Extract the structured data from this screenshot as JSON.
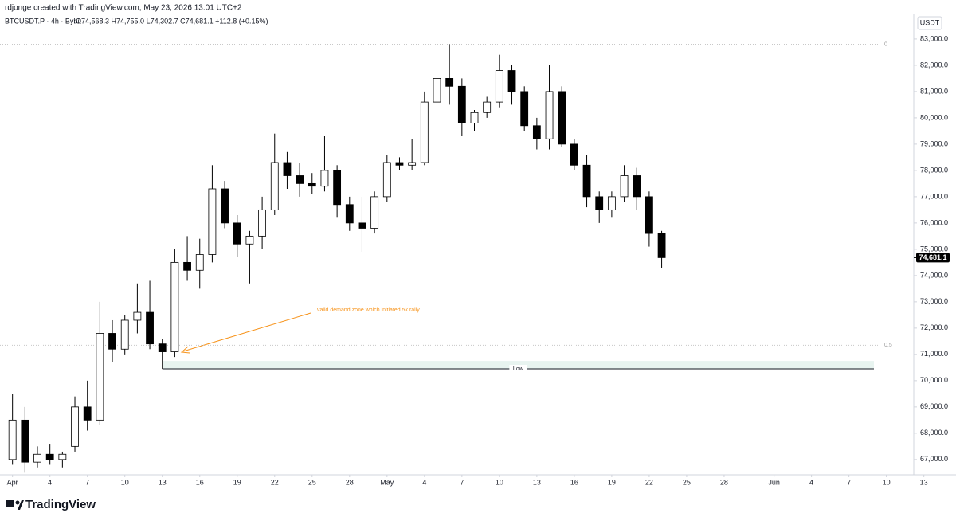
{
  "header": {
    "credit": "rdjonge created with TradingView.com, May 23, 2026 13:01 UTC+2",
    "symbol": "BTCUSDT.P · 4h · Bybit",
    "ohlc": "O74,568.3 H74,755.0 L74,302.7 C74,681.1 +112.8 (+0.15%)"
  },
  "footer": {
    "brand": "TradingView"
  },
  "chart_data": {
    "type": "candlestick",
    "x": [
      "2026-04-01",
      "2026-04-02",
      "2026-04-03",
      "2026-04-04",
      "2026-04-05",
      "2026-04-06",
      "2026-04-07",
      "2026-04-08",
      "2026-04-09",
      "2026-04-10",
      "2026-04-11",
      "2026-04-12",
      "2026-04-13",
      "2026-04-14",
      "2026-04-15",
      "2026-04-16",
      "2026-04-17",
      "2026-04-18",
      "2026-04-19",
      "2026-04-20",
      "2026-04-21",
      "2026-04-22",
      "2026-04-23",
      "2026-04-24",
      "2026-04-25",
      "2026-04-26",
      "2026-04-27",
      "2026-04-28",
      "2026-04-29",
      "2026-04-30",
      "2026-05-01",
      "2026-05-02",
      "2026-05-03",
      "2026-05-04",
      "2026-05-05",
      "2026-05-06",
      "2026-05-07",
      "2026-05-08",
      "2026-05-09",
      "2026-05-10",
      "2026-05-11",
      "2026-05-12",
      "2026-05-13",
      "2026-05-14",
      "2026-05-15",
      "2026-05-16",
      "2026-05-17",
      "2026-05-18",
      "2026-05-19",
      "2026-05-20",
      "2026-05-21",
      "2026-05-22",
      "2026-05-23"
    ],
    "open": [
      67000,
      68500,
      66900,
      67200,
      67000,
      67500,
      69000,
      68500,
      71800,
      71200,
      72300,
      72600,
      71400,
      71100,
      74500,
      74200,
      74800,
      77300,
      76000,
      75200,
      75500,
      76500,
      78300,
      77800,
      77500,
      77400,
      78000,
      76700,
      76000,
      75800,
      77000,
      78300,
      78200,
      78300,
      80600,
      81500,
      81200,
      79800,
      80200,
      80600,
      81800,
      81000,
      79700,
      79200,
      81000,
      79000,
      78200,
      77000,
      76500,
      77000,
      77800,
      77000,
      75600
    ],
    "high": [
      69500,
      69000,
      67500,
      67600,
      67300,
      69400,
      70000,
      73000,
      72300,
      72500,
      73700,
      73800,
      71600,
      75000,
      75500,
      75400,
      78200,
      77600,
      76300,
      75700,
      77000,
      79400,
      78700,
      78300,
      77900,
      79300,
      78200,
      77000,
      77000,
      77200,
      78600,
      78500,
      79200,
      81000,
      82000,
      82800,
      81500,
      80300,
      80800,
      82400,
      82000,
      81200,
      80000,
      82000,
      81200,
      79200,
      78600,
      77200,
      77200,
      78200,
      78100,
      77200,
      75700
    ],
    "low": [
      66800,
      66500,
      66700,
      66800,
      66700,
      67300,
      68100,
      68300,
      70700,
      71000,
      71800,
      71200,
      70450,
      70900,
      73800,
      73500,
      74500,
      75800,
      74700,
      73700,
      75000,
      76300,
      77300,
      77000,
      77100,
      77200,
      76200,
      75700,
      74900,
      75600,
      76800,
      78000,
      78000,
      78200,
      80000,
      80500,
      79300,
      79500,
      80000,
      80400,
      80500,
      79500,
      78800,
      78800,
      78900,
      78000,
      76600,
      76000,
      76200,
      76800,
      76500,
      75100,
      74300
    ],
    "close": [
      68500,
      66900,
      67200,
      67000,
      67200,
      69000,
      68500,
      71800,
      71200,
      72300,
      72600,
      71400,
      71100,
      74500,
      74200,
      74800,
      77300,
      76000,
      75200,
      75500,
      76500,
      78300,
      77800,
      77500,
      77400,
      78000,
      76700,
      76000,
      75800,
      77000,
      78300,
      78200,
      78300,
      80600,
      81500,
      81200,
      79800,
      80200,
      80600,
      81800,
      81000,
      79700,
      79200,
      81000,
      79000,
      78200,
      77000,
      76500,
      77000,
      77800,
      77000,
      75600,
      74681.1
    ],
    "up_color": "#ffffff",
    "down_color": "#000000",
    "xlim": [
      "2026-03-31",
      "2026-06-12"
    ],
    "ylim": [
      66450,
      83270
    ],
    "xticks": [
      {
        "value": "2026-04-01",
        "label": "Apr"
      },
      {
        "value": "2026-04-04",
        "label": "4"
      },
      {
        "value": "2026-04-07",
        "label": "7"
      },
      {
        "value": "2026-04-10",
        "label": "10"
      },
      {
        "value": "2026-04-13",
        "label": "13"
      },
      {
        "value": "2026-04-16",
        "label": "16"
      },
      {
        "value": "2026-04-19",
        "label": "19"
      },
      {
        "value": "2026-04-22",
        "label": "22"
      },
      {
        "value": "2026-04-25",
        "label": "25"
      },
      {
        "value": "2026-04-28",
        "label": "28"
      },
      {
        "value": "2026-05-01",
        "label": "May"
      },
      {
        "value": "2026-05-04",
        "label": "4"
      },
      {
        "value": "2026-05-07",
        "label": "7"
      },
      {
        "value": "2026-05-10",
        "label": "10"
      },
      {
        "value": "2026-05-13",
        "label": "13"
      },
      {
        "value": "2026-05-16",
        "label": "16"
      },
      {
        "value": "2026-05-19",
        "label": "19"
      },
      {
        "value": "2026-05-22",
        "label": "22"
      },
      {
        "value": "2026-05-25",
        "label": "25"
      },
      {
        "value": "2026-05-28",
        "label": "28"
      },
      {
        "value": "2026-06-01",
        "label": "Jun"
      },
      {
        "value": "2026-06-04",
        "label": "4"
      },
      {
        "value": "2026-06-07",
        "label": "7"
      },
      {
        "value": "2026-06-10",
        "label": "10"
      },
      {
        "value": "2026-06-13",
        "label": "13"
      }
    ],
    "yticks": [
      {
        "value": 67000,
        "label": "67,000.0"
      },
      {
        "value": 68000,
        "label": "68,000.0"
      },
      {
        "value": 69000,
        "label": "69,000.0"
      },
      {
        "value": 70000,
        "label": "70,000.0"
      },
      {
        "value": 71000,
        "label": "71,000.0"
      },
      {
        "value": 72000,
        "label": "72,000.0"
      },
      {
        "value": 73000,
        "label": "73,000.0"
      },
      {
        "value": 74000,
        "label": "74,000.0"
      },
      {
        "value": 75000,
        "label": "75,000.0"
      },
      {
        "value": 76000,
        "label": "76,000.0"
      },
      {
        "value": 77000,
        "label": "77,000.0"
      },
      {
        "value": 78000,
        "label": "78,000.0"
      },
      {
        "value": 79000,
        "label": "79,000.0"
      },
      {
        "value": 80000,
        "label": "80,000.0"
      },
      {
        "value": 81000,
        "label": "81,000.0"
      },
      {
        "value": 82000,
        "label": "82,000.0"
      },
      {
        "value": 83000,
        "label": "83,000.0"
      }
    ],
    "currency": "USDT",
    "last_price": {
      "value": 74681.1,
      "label": "74,681.1"
    },
    "levels": [
      {
        "value": 82800,
        "label": "0"
      },
      {
        "value": 71350,
        "label": "0.5"
      }
    ],
    "zone": {
      "x": [
        "2026-04-13",
        "2026-06-09"
      ],
      "y": [
        70450,
        70750
      ],
      "color": "#e8f4f0"
    },
    "low_line": {
      "value": 70450,
      "label": "Low",
      "x": [
        "2026-04-13",
        "2026-06-09"
      ]
    },
    "annotation": {
      "text": "valid demand zone which initiated 5k rally",
      "color": "#f7931a"
    }
  }
}
